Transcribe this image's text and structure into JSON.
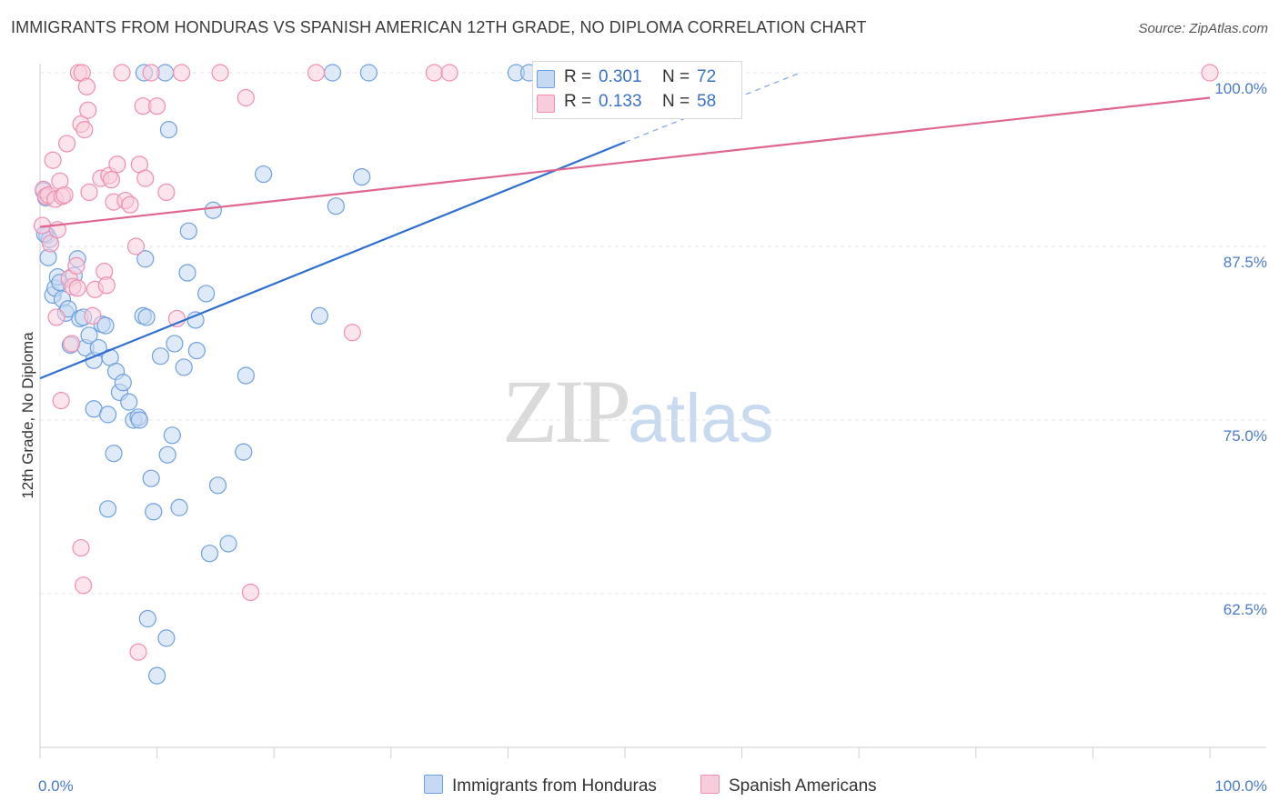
{
  "title": "IMMIGRANTS FROM HONDURAS VS SPANISH AMERICAN 12TH GRADE, NO DIPLOMA CORRELATION CHART",
  "source": "Source: ZipAtlas.com",
  "watermark": {
    "zip": "ZIP",
    "atlas": "atlas"
  },
  "legend": {
    "rows": [
      {
        "r_label": "R =",
        "r_value": "0.301",
        "n_label": "N =",
        "n_value": "72",
        "color": "#6fa0e0"
      },
      {
        "r_label": "R =",
        "r_value": "0.133",
        "n_label": "N =",
        "n_value": "58",
        "color": "#f08fb0"
      }
    ]
  },
  "bottom_legend": {
    "series1": "Immigrants from Honduras",
    "series2": "Spanish Americans"
  },
  "chart_data": {
    "type": "scatter",
    "title": "IMMIGRANTS FROM HONDURAS VS SPANISH AMERICAN 12TH GRADE, NO DIPLOMA CORRELATION CHART",
    "xlabel": "",
    "ylabel": "12th Grade, No Diploma",
    "xlim": [
      0,
      100
    ],
    "ylim": [
      51.5,
      102
    ],
    "x_tick_labels": [
      "0.0%",
      "100.0%"
    ],
    "y_ticks": [
      62.5,
      75.0,
      87.5,
      100.0
    ],
    "y_tick_labels": [
      "62.5%",
      "75.0%",
      "87.5%",
      "100.0%"
    ],
    "grid": true,
    "series": [
      {
        "name": "Immigrants from Honduras",
        "color": "#6fa0e0",
        "fill": "#c5d9f3",
        "trend": {
          "x0": 0,
          "y0": 78.0,
          "x1": 50,
          "y1": 95.0,
          "dash_to_x": 65,
          "dash_to_y": 100.0
        },
        "points": [
          [
            0.3,
            91.5
          ],
          [
            0.5,
            91.0
          ],
          [
            0.6,
            88.3
          ],
          [
            0.7,
            86.7
          ],
          [
            0.8,
            88.0
          ],
          [
            1.1,
            84.0
          ],
          [
            1.3,
            84.5
          ],
          [
            1.5,
            85.3
          ],
          [
            1.7,
            84.9
          ],
          [
            1.9,
            83.7
          ],
          [
            2.2,
            82.7
          ],
          [
            2.4,
            83.0
          ],
          [
            2.6,
            80.4
          ],
          [
            2.9,
            85.4
          ],
          [
            3.2,
            86.6
          ],
          [
            3.4,
            82.3
          ],
          [
            3.7,
            82.4
          ],
          [
            3.9,
            80.2
          ],
          [
            4.2,
            81.1
          ],
          [
            4.6,
            79.3
          ],
          [
            5.0,
            80.2
          ],
          [
            5.3,
            81.9
          ],
          [
            5.6,
            81.8
          ],
          [
            6.0,
            79.5
          ],
          [
            6.5,
            78.5
          ],
          [
            6.8,
            77.0
          ],
          [
            7.1,
            77.7
          ],
          [
            7.6,
            76.3
          ],
          [
            8.0,
            75.0
          ],
          [
            8.4,
            75.2
          ],
          [
            4.6,
            75.8
          ],
          [
            5.8,
            75.4
          ],
          [
            6.3,
            72.6
          ],
          [
            5.8,
            68.6
          ],
          [
            9.0,
            86.6
          ],
          [
            8.8,
            82.5
          ],
          [
            9.1,
            82.4
          ],
          [
            9.2,
            60.7
          ],
          [
            8.5,
            75.0
          ],
          [
            9.5,
            70.8
          ],
          [
            9.7,
            68.4
          ],
          [
            10.0,
            56.6
          ],
          [
            10.3,
            79.6
          ],
          [
            10.8,
            59.3
          ],
          [
            10.9,
            72.5
          ],
          [
            11.3,
            73.9
          ],
          [
            11.5,
            80.5
          ],
          [
            11.0,
            95.9
          ],
          [
            11.9,
            68.7
          ],
          [
            12.3,
            78.8
          ],
          [
            12.6,
            85.6
          ],
          [
            12.7,
            88.6
          ],
          [
            13.3,
            82.2
          ],
          [
            13.4,
            80.0
          ],
          [
            14.2,
            84.1
          ],
          [
            14.5,
            65.4
          ],
          [
            14.8,
            90.1
          ],
          [
            15.2,
            70.3
          ],
          [
            16.1,
            66.1
          ],
          [
            17.4,
            72.7
          ],
          [
            17.6,
            78.2
          ],
          [
            19.1,
            92.7
          ],
          [
            23.9,
            82.5
          ],
          [
            25.0,
            100.0
          ],
          [
            25.3,
            90.4
          ],
          [
            27.5,
            92.5
          ],
          [
            28.1,
            100.0
          ],
          [
            8.9,
            100.0
          ],
          [
            10.7,
            100.0
          ],
          [
            40.7,
            100.0
          ],
          [
            41.8,
            100.0
          ],
          [
            0.4,
            88.4
          ]
        ]
      },
      {
        "name": "Spanish Americans",
        "color": "#f08fb0",
        "fill": "#f8cddb",
        "trend": {
          "x0": 0,
          "y0": 88.9,
          "x1": 100,
          "y1": 98.2
        },
        "points": [
          [
            0.2,
            89.0
          ],
          [
            0.3,
            91.6
          ],
          [
            0.5,
            91.1
          ],
          [
            0.7,
            91.2
          ],
          [
            0.9,
            87.7
          ],
          [
            1.1,
            93.7
          ],
          [
            1.3,
            90.9
          ],
          [
            1.5,
            88.7
          ],
          [
            1.7,
            92.2
          ],
          [
            1.9,
            91.1
          ],
          [
            2.1,
            91.2
          ],
          [
            2.3,
            94.9
          ],
          [
            2.5,
            85.2
          ],
          [
            2.7,
            80.5
          ],
          [
            2.8,
            84.6
          ],
          [
            3.1,
            86.1
          ],
          [
            3.2,
            84.5
          ],
          [
            3.3,
            100.0
          ],
          [
            3.5,
            96.3
          ],
          [
            3.6,
            100.0
          ],
          [
            3.8,
            95.9
          ],
          [
            4.0,
            99.0
          ],
          [
            4.1,
            97.3
          ],
          [
            4.2,
            91.4
          ],
          [
            4.5,
            82.5
          ],
          [
            4.7,
            84.4
          ],
          [
            5.2,
            92.4
          ],
          [
            5.5,
            85.7
          ],
          [
            5.7,
            84.7
          ],
          [
            5.9,
            92.6
          ],
          [
            6.1,
            92.3
          ],
          [
            6.3,
            90.7
          ],
          [
            6.6,
            93.4
          ],
          [
            7.0,
            100.0
          ],
          [
            7.3,
            90.8
          ],
          [
            7.7,
            90.5
          ],
          [
            8.2,
            87.5
          ],
          [
            8.5,
            93.4
          ],
          [
            8.8,
            97.6
          ],
          [
            9.0,
            92.4
          ],
          [
            9.5,
            100.0
          ],
          [
            10.0,
            97.6
          ],
          [
            10.8,
            91.4
          ],
          [
            11.7,
            82.3
          ],
          [
            12.1,
            100.0
          ],
          [
            15.4,
            100.0
          ],
          [
            17.6,
            98.2
          ],
          [
            18.0,
            62.6
          ],
          [
            23.6,
            100.0
          ],
          [
            26.7,
            81.3
          ],
          [
            33.7,
            100.0
          ],
          [
            35.0,
            100.0
          ],
          [
            3.5,
            65.8
          ],
          [
            3.7,
            63.1
          ],
          [
            1.8,
            76.4
          ],
          [
            1.4,
            82.4
          ],
          [
            8.4,
            58.3
          ],
          [
            100.0,
            100.0
          ]
        ]
      }
    ]
  }
}
